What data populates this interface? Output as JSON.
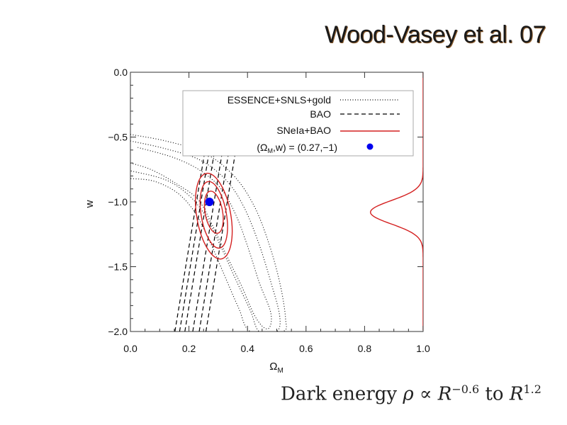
{
  "slide": {
    "title": "Wood-Vasey et al. 07",
    "caption": {
      "prefix": "Dark energy ",
      "rho": "ρ",
      "propto": " ∝ ",
      "R": "R",
      "exp1": "−0.6",
      "middle": " to ",
      "exp2": "1.2"
    }
  },
  "chart_data": {
    "type": "line",
    "xlabel_main": "Ω",
    "xlabel_sub": "M",
    "ylabel": "w",
    "xlim": [
      0.0,
      1.0
    ],
    "ylim": [
      -2.0,
      0.0
    ],
    "x_ticks": [
      "0.0",
      "0.2",
      "0.4",
      "0.6",
      "0.8",
      "1.0"
    ],
    "y_ticks": [
      "0.0",
      "−0.5",
      "−1.0",
      "−1.5",
      "−2.0"
    ],
    "legend": {
      "placement": "top-right",
      "entries": [
        {
          "label": "ESSENCE+SNLS+gold",
          "style": "dotted",
          "color": "#000000"
        },
        {
          "label": "BAO",
          "style": "dashed",
          "color": "#000000"
        },
        {
          "label": "SNeIa+BAO",
          "style": "solid",
          "color": "#d42020"
        },
        {
          "label_main": "(Ω",
          "label_sub": "M",
          "label_rest": ",w) = (0.27,−1)",
          "style": "marker",
          "color": "#0000ee"
        }
      ]
    },
    "reference_point": {
      "x": 0.27,
      "y": -1.0
    },
    "sn_contours": [
      {
        "level": 1,
        "points": [
          [
            0.025,
            -0.58
          ],
          [
            0.15,
            -0.66
          ],
          [
            0.24,
            -0.76
          ],
          [
            0.31,
            -0.9
          ],
          [
            0.36,
            -1.1
          ],
          [
            0.4,
            -1.34
          ],
          [
            0.44,
            -1.62
          ],
          [
            0.48,
            -1.86
          ],
          [
            0.47,
            -1.98
          ],
          [
            0.43,
            -1.9
          ],
          [
            0.38,
            -1.65
          ],
          [
            0.33,
            -1.42
          ],
          [
            0.28,
            -1.18
          ],
          [
            0.23,
            -0.98
          ],
          [
            0.15,
            -0.85
          ],
          [
            0.07,
            -0.75
          ],
          [
            0.0,
            -0.7
          ]
        ]
      },
      {
        "level": 2,
        "points": [
          [
            0.0,
            -0.53
          ],
          [
            0.12,
            -0.59
          ],
          [
            0.24,
            -0.68
          ],
          [
            0.33,
            -0.84
          ],
          [
            0.39,
            -1.05
          ],
          [
            0.44,
            -1.33
          ],
          [
            0.48,
            -1.62
          ],
          [
            0.51,
            -1.88
          ],
          [
            0.5,
            -2.0
          ],
          [
            0.44,
            -2.0
          ],
          [
            0.41,
            -1.84
          ],
          [
            0.36,
            -1.6
          ],
          [
            0.31,
            -1.35
          ],
          [
            0.26,
            -1.12
          ],
          [
            0.2,
            -0.95
          ],
          [
            0.12,
            -0.83
          ],
          [
            0.0,
            -0.76
          ]
        ]
      },
      {
        "level": 3,
        "points": [
          [
            0.0,
            -0.48
          ],
          [
            0.12,
            -0.53
          ],
          [
            0.25,
            -0.62
          ],
          [
            0.35,
            -0.79
          ],
          [
            0.42,
            -1.02
          ],
          [
            0.47,
            -1.3
          ],
          [
            0.51,
            -1.62
          ],
          [
            0.53,
            -1.9
          ],
          [
            0.52,
            -2.0
          ],
          [
            0.41,
            -2.0
          ],
          [
            0.37,
            -1.82
          ],
          [
            0.32,
            -1.56
          ],
          [
            0.27,
            -1.3
          ],
          [
            0.22,
            -1.08
          ],
          [
            0.16,
            -0.93
          ],
          [
            0.08,
            -0.84
          ],
          [
            0.0,
            -0.82
          ]
        ]
      }
    ],
    "bao_bands": [
      {
        "x_at_bottom": [
          0.186,
          0.213
        ],
        "x_at_top": [
          0.288,
          0.315
        ]
      },
      {
        "x_at_bottom": [
          0.168,
          0.235
        ],
        "x_at_top": [
          0.27,
          0.337
        ]
      },
      {
        "x_at_bottom": [
          0.152,
          0.258
        ],
        "x_at_top": [
          0.255,
          0.36
        ]
      }
    ],
    "combined_contours": [
      {
        "level": 1,
        "cx": 0.285,
        "cy": -1.08,
        "rx": 0.03,
        "ry": 0.165
      },
      {
        "level": 2,
        "cx": 0.285,
        "cy": -1.1,
        "rx": 0.043,
        "ry": 0.26
      },
      {
        "level": 3,
        "cx": 0.285,
        "cy": -1.11,
        "rx": 0.058,
        "ry": 0.335
      }
    ],
    "w_posterior": {
      "mean": -1.08,
      "sigma": 0.09,
      "peak_omega": 0.82,
      "baseline_omega": 1.0
    }
  }
}
